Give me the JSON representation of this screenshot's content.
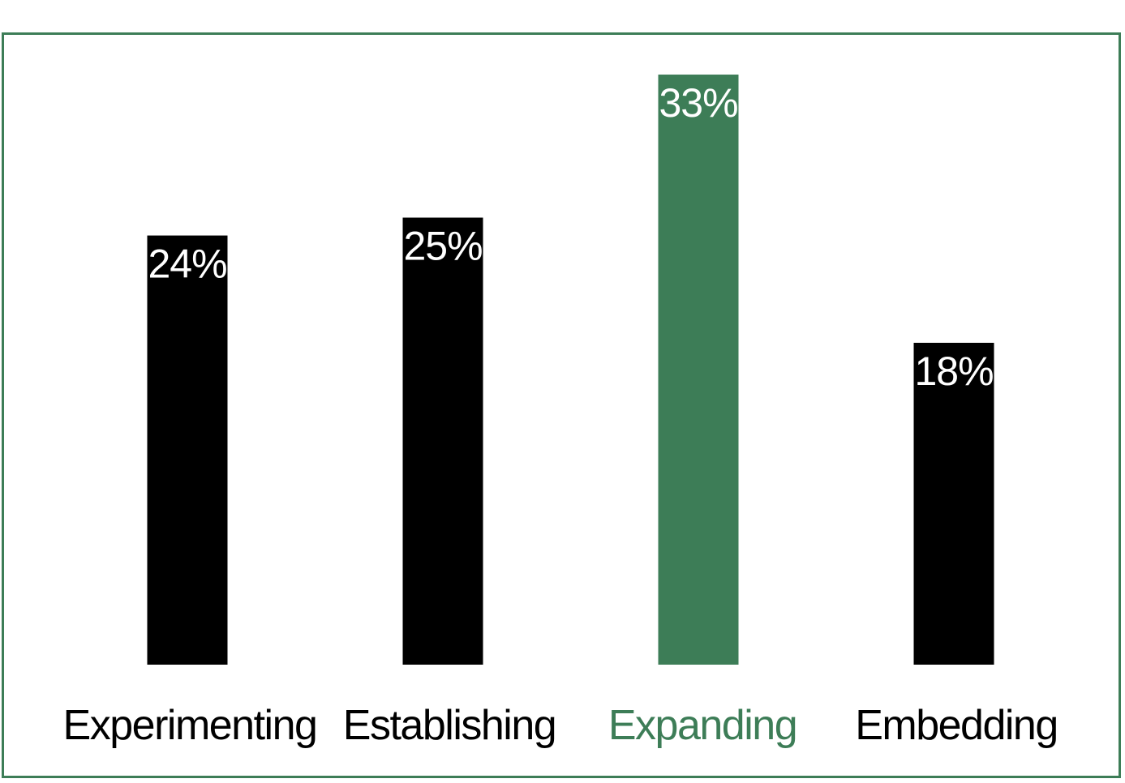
{
  "chart_data": {
    "type": "bar",
    "categories": [
      "Experimenting",
      "Establishing",
      "Expanding",
      "Embedding"
    ],
    "values": [
      24,
      25,
      33,
      18
    ],
    "value_labels": [
      "24%",
      "25%",
      "33%",
      "18%"
    ],
    "highlight_index": 2,
    "ylim": [
      0,
      35
    ],
    "grid": false,
    "colors": {
      "bar_default": "#000000",
      "bar_highlight": "#3d7d57",
      "label_default": "#000000",
      "label_highlight": "#3d7d57",
      "value_label": "#ffffff",
      "frame": "#3d7d57"
    }
  }
}
